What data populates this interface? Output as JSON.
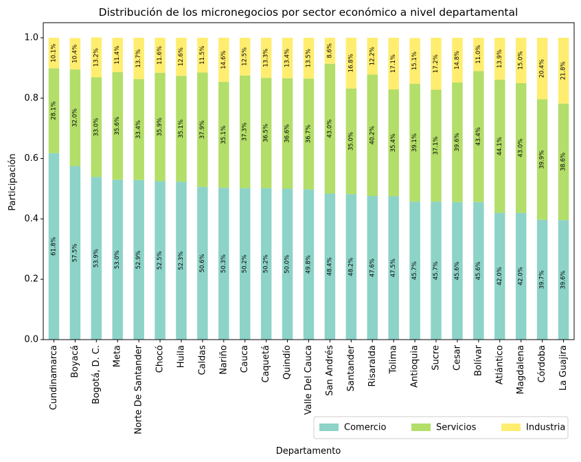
{
  "chart_data": {
    "type": "bar",
    "stacked": true,
    "title": "Distribución de los micronegocios por sector económico a nivel departamental",
    "xlabel": "Departamento",
    "ylabel": "Participación",
    "ylim": [
      0,
      1.05
    ],
    "yticks": [
      "0.0",
      "0.2",
      "0.4",
      "0.6",
      "0.8",
      "1.0"
    ],
    "legend_position": "bottom-right",
    "categories": [
      "Cundinamarca",
      "Boyacá",
      "Bogotá, D. C.",
      "Meta",
      "Norte De Santander",
      "Chocó",
      "Huila",
      "Caldas",
      "Nariño",
      "Cauca",
      "Caquetá",
      "Quindío",
      "Valle Del Cauca",
      "San Andrés",
      "Santander",
      "Risaralda",
      "Tolima",
      "Antioquia",
      "Sucre",
      "Cesar",
      "Bolívar",
      "Atlántico",
      "Magdalena",
      "Córdoba",
      "La Guajira"
    ],
    "series": [
      {
        "name": "Comercio",
        "color": "#8dd3c7",
        "values": [
          0.618,
          0.575,
          0.539,
          0.53,
          0.529,
          0.525,
          0.523,
          0.506,
          0.503,
          0.502,
          0.502,
          0.5,
          0.498,
          0.484,
          0.482,
          0.476,
          0.475,
          0.457,
          0.457,
          0.456,
          0.456,
          0.42,
          0.42,
          0.397,
          0.396
        ],
        "labels": [
          "61.8%",
          "57.5%",
          "53.9%",
          "53.0%",
          "52.9%",
          "52.5%",
          "52.3%",
          "50.6%",
          "50.3%",
          "50.2%",
          "50.2%",
          "50.0%",
          "49.8%",
          "48.4%",
          "48.2%",
          "47.6%",
          "47.5%",
          "45.7%",
          "45.7%",
          "45.6%",
          "45.6%",
          "42.0%",
          "42.0%",
          "39.7%",
          "39.6%"
        ]
      },
      {
        "name": "Servicios",
        "color": "#b3de69",
        "values": [
          0.281,
          0.32,
          0.33,
          0.356,
          0.334,
          0.359,
          0.351,
          0.379,
          0.351,
          0.373,
          0.365,
          0.366,
          0.367,
          0.43,
          0.35,
          0.402,
          0.354,
          0.391,
          0.371,
          0.396,
          0.434,
          0.441,
          0.43,
          0.399,
          0.386
        ],
        "labels": [
          "28.1%",
          "32.0%",
          "33.0%",
          "35.6%",
          "33.4%",
          "35.9%",
          "35.1%",
          "37.9%",
          "35.1%",
          "37.3%",
          "36.5%",
          "36.6%",
          "36.7%",
          "43.0%",
          "35.0%",
          "40.2%",
          "35.4%",
          "39.1%",
          "37.1%",
          "39.6%",
          "43.4%",
          "44.1%",
          "43.0%",
          "39.9%",
          "38.6%"
        ]
      },
      {
        "name": "Industria",
        "color": "#ffed6f",
        "values": [
          0.101,
          0.104,
          0.132,
          0.114,
          0.137,
          0.116,
          0.126,
          0.115,
          0.146,
          0.125,
          0.133,
          0.134,
          0.135,
          0.086,
          0.168,
          0.122,
          0.171,
          0.151,
          0.172,
          0.148,
          0.11,
          0.139,
          0.15,
          0.204,
          0.218
        ],
        "labels": [
          "10.1%",
          "10.4%",
          "13.2%",
          "11.4%",
          "13.7%",
          "11.6%",
          "12.6%",
          "11.5%",
          "14.6%",
          "12.5%",
          "13.3%",
          "13.4%",
          "13.5%",
          "8.6%",
          "16.8%",
          "12.2%",
          "17.1%",
          "15.1%",
          "17.2%",
          "14.8%",
          "11.0%",
          "13.9%",
          "15.0%",
          "20.4%",
          "21.8%"
        ]
      }
    ]
  }
}
